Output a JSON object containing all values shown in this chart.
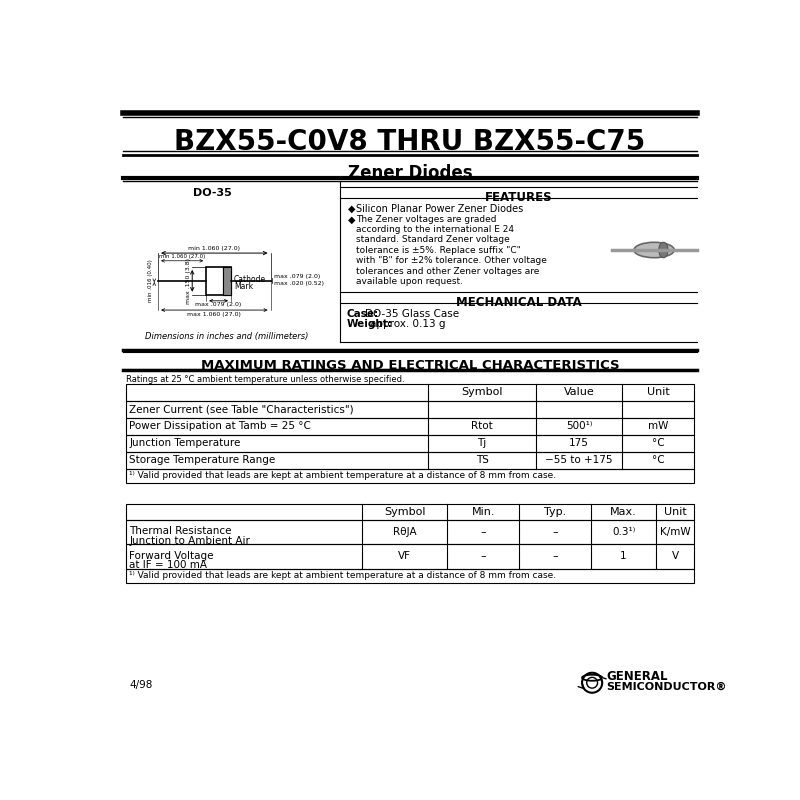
{
  "title": "BZX55-C0V8 THRU BZX55-C75",
  "subtitle": "Zener Diodes",
  "bg_color": "#ffffff",
  "features_title": "FEATURES",
  "feature1": "Silicon Planar Power Zener Diodes",
  "feature2": "The Zener voltages are graded\naccording to the international E 24\nstandard. Standard Zener voltage\ntolerance is ±5%. Replace suffix \"C\"\nwith \"B\" for ±2% tolerance. Other voltage\ntolerances and other Zener voltages are\navailable upon request.",
  "mech_title": "MECHANICAL DATA",
  "case_label": "Case:",
  "case_value": "DO-35 Glass Case",
  "weight_label": "Weight:",
  "weight_value": "approx. 0.13 g",
  "package": "DO-35",
  "dim_note": "Dimensions in inches and (millimeters)",
  "max_ratings_title": "MAXIMUM RATINGS AND ELECTRICAL CHARACTERISTICS",
  "ratings_note": "Ratings at 25 °C ambient temperature unless otherwise specified.",
  "t1_col1": "Symbol",
  "t1_col2": "Value",
  "t1_col3": "Unit",
  "t1r1_label": "Zener Current (see Table \"Characteristics\")",
  "t1r2_label": "Power Dissipation at Tamb = 25 °C",
  "t1r2_sym": "Rtot",
  "t1r2_val": "500¹⁾",
  "t1r2_unit": "mW",
  "t1r3_label": "Junction Temperature",
  "t1r3_sym": "Tj",
  "t1r3_val": "175",
  "t1r3_unit": "°C",
  "t1r4_label": "Storage Temperature Range",
  "t1r4_sym": "TS",
  "t1r4_val": "−55 to +175",
  "t1r4_unit": "°C",
  "t1_footnote": "¹⁾ Valid provided that leads are kept at ambient temperature at a distance of 8 mm from case.",
  "t2_col1": "Symbol",
  "t2_col2": "Min.",
  "t2_col3": "Typ.",
  "t2_col4": "Max.",
  "t2_col5": "Unit",
  "t2r1_label1": "Thermal Resistance",
  "t2r1_label2": "Junction to Ambient Air",
  "t2r1_sym": "RθJA",
  "t2r1_min": "–",
  "t2r1_typ": "–",
  "t2r1_max": "0.3¹⁾",
  "t2r1_unit": "K/mW",
  "t2r2_label1": "Forward Voltage",
  "t2r2_label2": "at IF = 100 mA",
  "t2r2_sym": "VF",
  "t2r2_min": "–",
  "t2r2_typ": "–",
  "t2r2_max": "1",
  "t2r2_unit": "V",
  "t2_footnote": "¹⁾ Valid provided that leads are kept at ambient temperature at a distance of 8 mm from case.",
  "date_code": "4/98",
  "gs_line1": "General",
  "gs_line2": "Semiconductor®"
}
